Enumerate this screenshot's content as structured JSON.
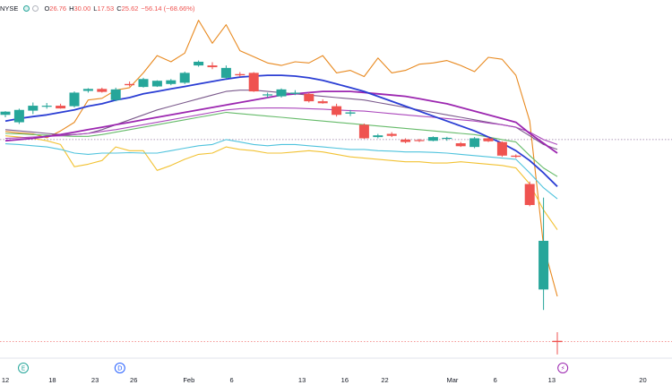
{
  "legend": {
    "symbol": "NYSE",
    "open_label": "O",
    "open": "26.76",
    "high_label": "H",
    "high": "30.00",
    "low_label": "L",
    "low": "17.53",
    "close_label": "C",
    "close": "25.62",
    "change": "−56.14 (−68.66%)",
    "change_color": "#ef5350"
  },
  "colors": {
    "up": "#26a69a",
    "down": "#ef5350",
    "ma_blue": "#2b3ed4",
    "ma_purple": "#9c27b0",
    "ma_purple_light": "#ab47bc",
    "ma_violet": "#7b5a8c",
    "ma_orange": "#e8891f",
    "ma_yellow": "#f2c233",
    "ma_green": "#66bb6a",
    "ma_cyan": "#4fc3dd",
    "price_line": "#ef5350"
  },
  "chart_data": {
    "type": "candlestick",
    "xlim": [
      -0.1,
      47
    ],
    "ylim": [
      -20,
      125
    ],
    "x_ticks": [
      {
        "x": 0,
        "label": "12"
      },
      {
        "x": 3.4,
        "label": "18"
      },
      {
        "x": 6.5,
        "label": "23"
      },
      {
        "x": 9.3,
        "label": "26"
      },
      {
        "x": 13.3,
        "label": "Feb"
      },
      {
        "x": 16.4,
        "label": "6"
      },
      {
        "x": 21.5,
        "label": "13"
      },
      {
        "x": 24.6,
        "label": "16"
      },
      {
        "x": 27.5,
        "label": "22"
      },
      {
        "x": 32.4,
        "label": "Mar"
      },
      {
        "x": 35.5,
        "label": "6"
      },
      {
        "x": 39.6,
        "label": "13"
      },
      {
        "x": 46.2,
        "label": "20"
      }
    ],
    "event_markers": [
      {
        "x": 1.3,
        "label": "E",
        "color": "#26a69a"
      },
      {
        "x": 8.3,
        "label": "D",
        "color": "#2962ff"
      },
      {
        "x": 40.4,
        "label": "⚡",
        "color": "#9c27b0"
      }
    ],
    "candles": [
      {
        "o": 78.5,
        "h": 80.0,
        "l": 77.5,
        "c": 79.8
      },
      {
        "o": 75.5,
        "h": 81.0,
        "l": 74.8,
        "c": 80.5
      },
      {
        "o": 80.2,
        "h": 83.5,
        "l": 78.8,
        "c": 82.2
      },
      {
        "o": 81.9,
        "h": 83.3,
        "l": 81.0,
        "c": 82.2
      },
      {
        "o": 82.2,
        "h": 83.0,
        "l": 81.0,
        "c": 81.1
      },
      {
        "o": 82.0,
        "h": 88.0,
        "l": 81.5,
        "c": 87.5
      },
      {
        "o": 88.2,
        "h": 89.3,
        "l": 87.5,
        "c": 89.0
      },
      {
        "o": 89.0,
        "h": 89.5,
        "l": 87.5,
        "c": 87.8
      },
      {
        "o": 84.5,
        "h": 89.5,
        "l": 84.0,
        "c": 88.8
      },
      {
        "o": 91.0,
        "h": 92.0,
        "l": 90.0,
        "c": 90.5
      },
      {
        "o": 89.8,
        "h": 93.5,
        "l": 89.5,
        "c": 93.0
      },
      {
        "o": 90.0,
        "h": 92.5,
        "l": 89.8,
        "c": 92.3
      },
      {
        "o": 91.0,
        "h": 93.0,
        "l": 90.5,
        "c": 92.5
      },
      {
        "o": 91.5,
        "h": 96.0,
        "l": 91.0,
        "c": 95.5
      },
      {
        "o": 98.5,
        "h": 100.5,
        "l": 98.0,
        "c": 100.0
      },
      {
        "o": 98.5,
        "h": 99.8,
        "l": 97.0,
        "c": 97.8
      },
      {
        "o": 93.5,
        "h": 98.5,
        "l": 93.0,
        "c": 97.5
      },
      {
        "o": 95.0,
        "h": 95.8,
        "l": 94.0,
        "c": 94.5
      },
      {
        "o": 95.5,
        "h": 95.8,
        "l": 87.8,
        "c": 88.0
      },
      {
        "o": 86.5,
        "h": 87.5,
        "l": 85.5,
        "c": 86.8
      },
      {
        "o": 86.0,
        "h": 89.2,
        "l": 85.5,
        "c": 88.8
      },
      {
        "o": 87.0,
        "h": 88.5,
        "l": 86.5,
        "c": 87.5
      },
      {
        "o": 87.0,
        "h": 87.5,
        "l": 83.5,
        "c": 84.0
      },
      {
        "o": 84.0,
        "h": 84.8,
        "l": 83.0,
        "c": 83.2
      },
      {
        "o": 82.0,
        "h": 83.0,
        "l": 77.8,
        "c": 78.5
      },
      {
        "o": 79.0,
        "h": 80.5,
        "l": 78.0,
        "c": 79.5
      },
      {
        "o": 74.5,
        "h": 75.0,
        "l": 68.8,
        "c": 69.0
      },
      {
        "o": 69.5,
        "h": 70.8,
        "l": 69.0,
        "c": 70.2
      },
      {
        "o": 70.8,
        "h": 71.5,
        "l": 69.5,
        "c": 70.0
      },
      {
        "o": 68.5,
        "h": 69.0,
        "l": 67.0,
        "c": 67.5
      },
      {
        "o": 68.3,
        "h": 68.8,
        "l": 67.5,
        "c": 68.0
      },
      {
        "o": 68.0,
        "h": 69.8,
        "l": 67.8,
        "c": 69.5
      },
      {
        "o": 68.8,
        "h": 69.6,
        "l": 68.0,
        "c": 69.2
      },
      {
        "o": 67.0,
        "h": 67.5,
        "l": 65.5,
        "c": 65.8
      },
      {
        "o": 65.5,
        "h": 69.5,
        "l": 65.0,
        "c": 69.0
      },
      {
        "o": 69.0,
        "h": 69.5,
        "l": 67.5,
        "c": 67.8
      },
      {
        "o": 67.5,
        "h": 67.8,
        "l": 61.5,
        "c": 62.0
      },
      {
        "o": 62.0,
        "h": 62.5,
        "l": 61.0,
        "c": 61.5
      },
      {
        "o": 50.5,
        "h": 51.5,
        "l": 41.5,
        "c": 42.0
      },
      {
        "o": 7.8,
        "h": 45.0,
        "l": -0.5,
        "c": 27.5
      },
      {
        "o": -13.0,
        "h": -9.5,
        "l": -18.5,
        "c": -13.5
      }
    ],
    "moving_averages": [
      {
        "color_key": "ma_orange",
        "values": [
          71.8,
          71.2,
          70.8,
          69.2,
          72.0,
          75.5,
          84.5,
          85.2,
          88.5,
          89.5,
          95.5,
          102.5,
          100.0,
          103.5,
          116.8,
          107.5,
          115.0,
          104.5,
          102.0,
          99.5,
          98.5,
          100.0,
          99.5,
          102.5,
          95.5,
          96.5,
          94.0,
          101.5,
          95.5,
          96.5,
          99.0,
          99.5,
          100.5,
          98.5,
          96.0,
          101.8,
          101.0,
          94.5,
          76.0,
          25.5,
          5.0
        ]
      },
      {
        "color_key": "ma_yellow",
        "values": [
          70.0,
          69.5,
          69.0,
          68.0,
          66.5,
          57.5,
          58.5,
          60.0,
          65.5,
          64.0,
          64.0,
          56.0,
          58.0,
          60.5,
          62.5,
          63.0,
          65.5,
          64.5,
          64.0,
          63.0,
          63.0,
          63.5,
          64.0,
          63.5,
          62.5,
          61.5,
          61.0,
          60.5,
          60.0,
          59.5,
          59.5,
          59.0,
          59.0,
          59.5,
          59.0,
          58.5,
          58.0,
          57.0,
          50.5,
          40.0,
          32.0
        ]
      },
      {
        "color_key": "ma_cyan",
        "values": [
          66.8,
          66.5,
          66.0,
          65.5,
          64.5,
          63.0,
          62.5,
          63.0,
          63.0,
          63.2,
          63.0,
          63.0,
          64.0,
          65.0,
          66.0,
          66.5,
          68.5,
          67.5,
          66.5,
          66.0,
          66.5,
          66.5,
          66.0,
          65.5,
          65.0,
          64.5,
          64.5,
          64.0,
          63.8,
          63.5,
          63.5,
          63.3,
          63.0,
          62.5,
          62.0,
          61.5,
          61.0,
          60.5,
          55.0,
          49.0,
          44.5
        ]
      },
      {
        "color_key": "ma_green",
        "values": [
          71.0,
          70.8,
          70.5,
          70.3,
          70.0,
          69.8,
          69.8,
          70.5,
          71.5,
          72.5,
          73.5,
          74.5,
          75.5,
          76.5,
          77.5,
          78.5,
          79.5,
          79.0,
          78.5,
          78.0,
          77.5,
          77.0,
          76.5,
          76.0,
          75.5,
          75.0,
          74.5,
          74.0,
          73.5,
          73.0,
          72.5,
          72.0,
          71.5,
          71.0,
          70.5,
          69.5,
          68.5,
          67.5,
          62.0,
          57.0,
          53.5
        ]
      },
      {
        "color_key": "ma_violet",
        "values": [
          72.5,
          72.0,
          71.5,
          71.0,
          70.5,
          70.5,
          71.0,
          72.5,
          74.5,
          76.5,
          78.5,
          80.5,
          82.0,
          83.5,
          85.0,
          86.5,
          88.0,
          88.5,
          88.5,
          88.0,
          87.5,
          87.0,
          86.5,
          86.0,
          85.5,
          85.0,
          84.5,
          83.5,
          82.5,
          81.5,
          80.5,
          79.5,
          78.5,
          77.5,
          76.5,
          75.5,
          74.5,
          73.5,
          70.0,
          66.5,
          64.5
        ]
      },
      {
        "color_key": "ma_purple_light",
        "values": [
          69.0,
          69.2,
          69.5,
          69.8,
          70.0,
          70.5,
          71.0,
          71.8,
          72.5,
          73.5,
          74.5,
          75.5,
          76.5,
          77.5,
          78.5,
          79.5,
          80.5,
          81.0,
          81.2,
          81.3,
          81.3,
          81.2,
          81.0,
          80.8,
          80.5,
          80.2,
          80.0,
          79.5,
          79.0,
          78.5,
          78.0,
          77.5,
          77.0,
          76.5,
          76.0,
          75.2,
          74.5,
          73.5,
          71.5,
          68.5,
          66.5
        ]
      },
      {
        "color_key": "ma_purple",
        "values": [
          68.0,
          68.5,
          69.0,
          69.8,
          70.5,
          71.5,
          72.5,
          73.5,
          74.5,
          75.5,
          76.5,
          77.5,
          78.5,
          79.5,
          80.5,
          81.5,
          82.5,
          83.5,
          84.5,
          85.5,
          86.5,
          87.0,
          87.5,
          88.0,
          88.0,
          88.0,
          87.5,
          87.0,
          86.5,
          86.0,
          85.0,
          84.0,
          83.0,
          81.5,
          80.0,
          78.5,
          77.0,
          75.5,
          71.0,
          67.0,
          63.0
        ]
      },
      {
        "color_key": "ma_blue",
        "values": [
          76.0,
          77.0,
          77.8,
          78.5,
          79.5,
          80.5,
          82.0,
          83.0,
          84.5,
          85.5,
          87.0,
          88.0,
          89.0,
          90.0,
          91.0,
          92.0,
          93.0,
          93.8,
          94.2,
          94.5,
          94.5,
          94.2,
          93.5,
          92.5,
          91.0,
          89.5,
          88.0,
          86.0,
          84.0,
          82.0,
          80.0,
          78.0,
          76.0,
          74.0,
          72.0,
          69.5,
          67.0,
          64.0,
          60.0,
          55.0,
          49.5
        ]
      }
    ],
    "horizontal_lines": [
      {
        "y": 68.5,
        "style": "dotted",
        "color_key": "ma_violet"
      },
      {
        "y": -13.3,
        "style": "dotted",
        "color_key": "price_line"
      }
    ],
    "grid": false
  }
}
